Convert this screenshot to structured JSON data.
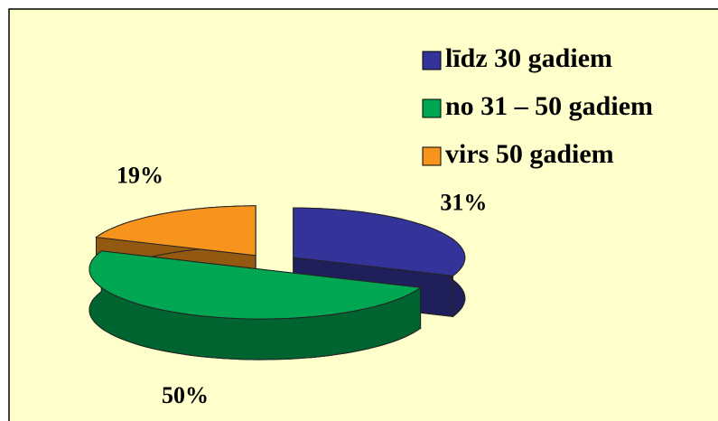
{
  "chart_data": {
    "type": "pie3d",
    "categories": [
      "līdz 30 gadiem",
      "no 31 – 50 gadiem",
      "virs 50 gadiem"
    ],
    "values": [
      31,
      50,
      19
    ],
    "value_labels": [
      "31%",
      "50%",
      "19%"
    ],
    "colors": [
      "#333399",
      "#00a651",
      "#f7941d"
    ],
    "legend": "top-right"
  }
}
